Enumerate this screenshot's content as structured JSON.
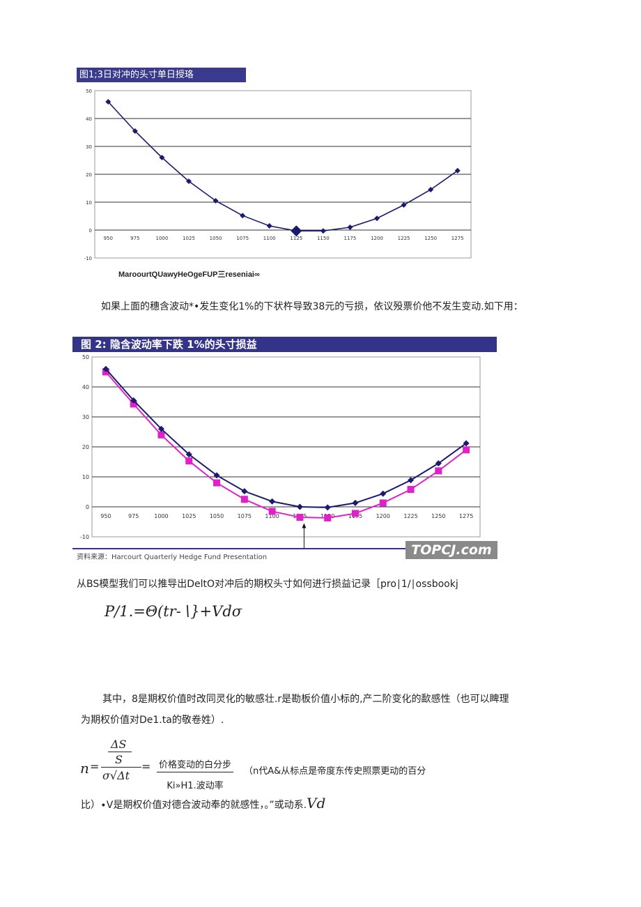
{
  "figure1": {
    "title": "图1;3日对冲的头寸单日授珞",
    "source": "MaroourtQUawyHeOgeFUP三reseniai∞"
  },
  "paragraph1": "如果上面的穗含波动*•发生变化1%的下状杵导致38元的亏损，依议殁票价他不发生变动.如下用：",
  "figure2": {
    "title": "图 2:  隐含波动率下跌 1%的头寸损益",
    "source": "资料来源：Harcourt Quarterly Hedge Fund Presentation",
    "watermark": "TOPCJ.com"
  },
  "paragraph2": "从BS模型我们可以推导出DeltO对冲后的期权头寸如何进行损益记录［pro∣1∕∣ossbookj",
  "formula1": "P/1.=Θ(tr-∖}+Vdσ",
  "paragraph3_line1": "其中，8是期权价值时改同灵化的敏感壮.r是勘板价值小标的,产二阶变化的歃感性（也可以睥理",
  "paragraph3_line2": "为期权价值对De1.ta的敬卷姓）.",
  "formula2": {
    "lhs": "n",
    "num_top": "ΔS",
    "num_bottom": "S",
    "den": "σ√Δt",
    "eq": "=",
    "word_num": "价格变动的白分步",
    "word_den": "Ki»H1.波动率",
    "note": "（n代A&从标点是帝度东传史照票更动的百分"
  },
  "paragraph4": "比）∙V是期权价值对德合波动奉的就感性，。”或动系.",
  "paragraph4_tail": "Vd",
  "chart_data": [
    {
      "type": "line",
      "categories": [
        "950",
        "975",
        "1000",
        "1025",
        "1050",
        "1075",
        "1100",
        "1125",
        "1150",
        "1175",
        "1200",
        "1225",
        "1250",
        "1275"
      ],
      "ylim": [
        -10,
        50
      ],
      "yticks": [
        "50",
        "40",
        "30",
        "20",
        "10",
        "0",
        "-10"
      ],
      "grid": true,
      "colors": {
        "line": "#1a1a6e",
        "marker": "#1a1a6e"
      },
      "series": [
        {
          "values": [
            46,
            35.5,
            26,
            17.5,
            10.5,
            5.2,
            1.5,
            -0.3,
            -0.3,
            1,
            4.2,
            9,
            14.5,
            21.3
          ]
        }
      ]
    },
    {
      "type": "line",
      "categories": [
        "950",
        "975",
        "1000",
        "1025",
        "1050",
        "1075",
        "1100",
        "1125",
        "1150",
        "1175",
        "1200",
        "1225",
        "1250",
        "1275"
      ],
      "ylim": [
        -10,
        50
      ],
      "yticks": [
        "50",
        "40",
        "30",
        "20",
        "10",
        "0",
        "-10"
      ],
      "grid": true,
      "colors": {
        "series1": "#1a1a6e",
        "series2": "#e020c8"
      },
      "series": [
        {
          "values": [
            46,
            35.5,
            26,
            17.5,
            10.5,
            5.2,
            1.8,
            0.0,
            -0.2,
            1.3,
            4.4,
            8.9,
            14.5,
            21.2
          ]
        },
        {
          "values": [
            45,
            34.3,
            24,
            15.3,
            8,
            2.5,
            -1.5,
            -3.5,
            -3.7,
            -2.2,
            1.3,
            5.8,
            12,
            19
          ]
        }
      ]
    }
  ]
}
